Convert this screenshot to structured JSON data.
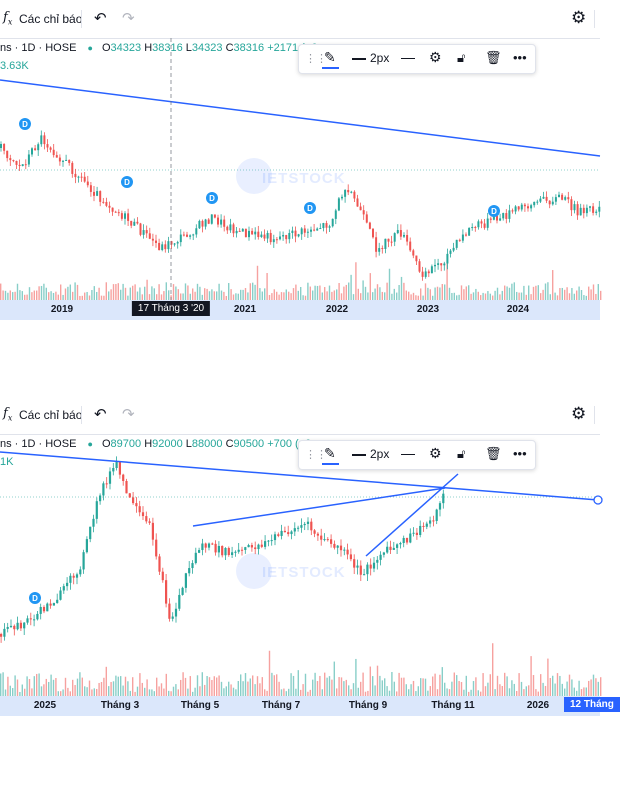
{
  "toolbar": {
    "fx_icon": "fx-icon",
    "indicators_label": "Các chỉ báo",
    "undo_icon": "undo-icon",
    "redo_icon": "redo-icon",
    "settings_icon": "gear-icon"
  },
  "drawing_toolbar": {
    "width_label": "2px",
    "icons": [
      "grip-icon",
      "pencil-icon",
      "line-style-icon",
      "dash-style-icon",
      "gear-icon",
      "lock-icon",
      "trash-icon",
      "more-icon"
    ]
  },
  "watermark": "IETSTOCK",
  "panels": [
    {
      "symbol": "ns · 1D · HOSE",
      "ohlc": [
        {
          "k": "O",
          "v": "34323"
        },
        {
          "k": "H",
          "v": "38316"
        },
        {
          "k": "L",
          "v": "34323"
        },
        {
          "k": "C",
          "v": "38316"
        },
        {
          "k": "",
          "v": "+2171 (+6"
        }
      ],
      "volume": "3.63K",
      "crosshair_label": "17 Tháng 3 '20",
      "ticks": [
        "2019",
        "2021",
        "2022",
        "2023",
        "2024"
      ],
      "dividend_marker": "D",
      "accent_color": "#2962ff",
      "up_color": "#26a69a",
      "down_color": "#ef5350"
    },
    {
      "symbol": "ns · 1D · HOSE",
      "ohlc": [
        {
          "k": "O",
          "v": "89700"
        },
        {
          "k": "H",
          "v": "92000"
        },
        {
          "k": "L",
          "v": "88000"
        },
        {
          "k": "C",
          "v": "90500"
        },
        {
          "k": "",
          "v": "+700 (+0"
        }
      ],
      "volume": "1K",
      "ticks": [
        "2025",
        "Tháng 3",
        "Tháng 5",
        "Tháng 7",
        "Tháng 9",
        "Tháng 11",
        "2026"
      ],
      "end_label": "12 Tháng",
      "dividend_marker": "D"
    }
  ]
}
